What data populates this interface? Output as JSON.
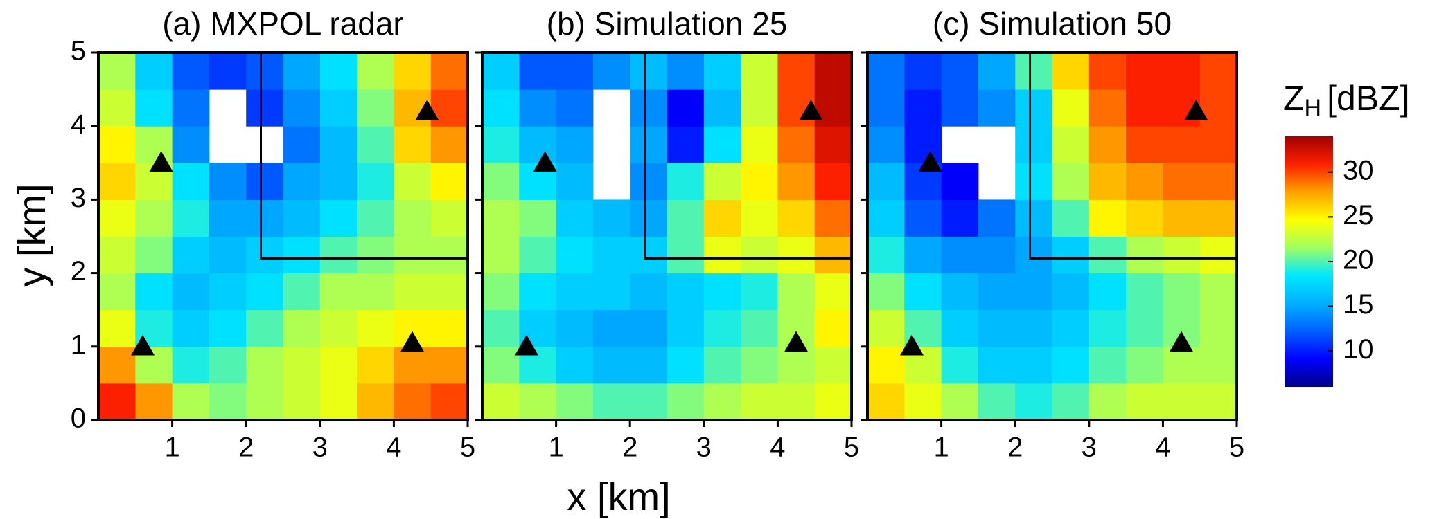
{
  "chart_data": {
    "type": "heatmap",
    "xlabel": "x [km]",
    "ylabel": "y [km]",
    "xlim": [
      0,
      5
    ],
    "ylim": [
      0,
      5
    ],
    "xticks": [
      1,
      2,
      3,
      4,
      5
    ],
    "yticks": [
      0,
      1,
      2,
      3,
      4,
      5
    ],
    "x": [
      0.25,
      0.75,
      1.25,
      1.75,
      2.25,
      2.75,
      3.25,
      3.75,
      4.25,
      4.75
    ],
    "y": [
      0.25,
      0.75,
      1.25,
      1.75,
      2.25,
      2.75,
      3.25,
      3.75,
      4.25,
      4.75
    ],
    "colorbar": {
      "label": {
        "main": "Z",
        "sub": "H",
        "unit": "[dBZ]"
      },
      "clim": [
        6,
        34
      ],
      "ticks": [
        10,
        15,
        20,
        25,
        30
      ],
      "colormap": [
        "#00008b",
        "#0000ff",
        "#0060ff",
        "#00b0ff",
        "#00e8ff",
        "#a0ff60",
        "#ffff00",
        "#ffa000",
        "#ff2000",
        "#a00000"
      ]
    },
    "stations": {
      "x": [
        0.85,
        4.45,
        0.6,
        4.25
      ],
      "y": [
        3.5,
        4.2,
        1.0,
        1.05
      ],
      "color": "#000000"
    },
    "region": {
      "x": [
        2.2,
        5
      ],
      "y": [
        2.2,
        5
      ],
      "color": "#000000"
    },
    "panels": [
      {
        "title": "(a) MXPOL radar",
        "values": [
          [
            31,
            28,
            22,
            21,
            22,
            23,
            24,
            27,
            29,
            30
          ],
          [
            28,
            22,
            19,
            20,
            22,
            23,
            24,
            26,
            28,
            28
          ],
          [
            24,
            19,
            17,
            18,
            20,
            22,
            23,
            24,
            25,
            25
          ],
          [
            22,
            18,
            16,
            17,
            18,
            20,
            22,
            22,
            23,
            23
          ],
          [
            23,
            21,
            17,
            16,
            17,
            18,
            20,
            21,
            22,
            22
          ],
          [
            24,
            22,
            19,
            15,
            15,
            16,
            18,
            20,
            22,
            23
          ],
          [
            26,
            23,
            18,
            14,
            12,
            15,
            16,
            19,
            23,
            25
          ],
          [
            25,
            22,
            14,
            null,
            null,
            13,
            16,
            20,
            26,
            28
          ],
          [
            23,
            18,
            13,
            null,
            11,
            14,
            17,
            21,
            27,
            30
          ],
          [
            22,
            17,
            12,
            11,
            12,
            15,
            18,
            22,
            26,
            29
          ]
        ]
      },
      {
        "title": "(b) Simulation 25",
        "values": [
          [
            23,
            22,
            21,
            20,
            20,
            21,
            22,
            23,
            23,
            24
          ],
          [
            21,
            19,
            17,
            16,
            16,
            18,
            20,
            21,
            22,
            23
          ],
          [
            20,
            17,
            16,
            15,
            15,
            17,
            19,
            20,
            22,
            25
          ],
          [
            21,
            18,
            17,
            17,
            16,
            17,
            18,
            19,
            22,
            24
          ],
          [
            22,
            20,
            18,
            17,
            17,
            20,
            24,
            23,
            24,
            27
          ],
          [
            22,
            21,
            17,
            16,
            15,
            20,
            26,
            24,
            26,
            29
          ],
          [
            21,
            18,
            16,
            null,
            14,
            19,
            23,
            25,
            28,
            31
          ],
          [
            19,
            16,
            15,
            null,
            15,
            10,
            18,
            24,
            29,
            32
          ],
          [
            18,
            14,
            13,
            null,
            14,
            9,
            16,
            23,
            30,
            33
          ],
          [
            17,
            12,
            12,
            14,
            16,
            14,
            17,
            23,
            30,
            33
          ]
        ]
      },
      {
        "title": "(c) Simulation 50",
        "values": [
          [
            26,
            24,
            22,
            20,
            19,
            20,
            22,
            23,
            23,
            23
          ],
          [
            25,
            23,
            19,
            17,
            17,
            18,
            20,
            21,
            22,
            22
          ],
          [
            23,
            20,
            17,
            16,
            16,
            17,
            19,
            20,
            21,
            22
          ],
          [
            21,
            18,
            16,
            15,
            15,
            16,
            18,
            20,
            21,
            22
          ],
          [
            19,
            15,
            14,
            14,
            15,
            17,
            20,
            22,
            23,
            24
          ],
          [
            17,
            12,
            10,
            13,
            16,
            20,
            25,
            26,
            27,
            27
          ],
          [
            16,
            11,
            9,
            null,
            18,
            22,
            27,
            28,
            29,
            29
          ],
          [
            14,
            10,
            null,
            null,
            17,
            23,
            28,
            30,
            30,
            30
          ],
          [
            13,
            10,
            12,
            14,
            17,
            24,
            29,
            31,
            31,
            30
          ],
          [
            13,
            11,
            12,
            15,
            20,
            26,
            30,
            31,
            31,
            30
          ]
        ]
      }
    ]
  }
}
